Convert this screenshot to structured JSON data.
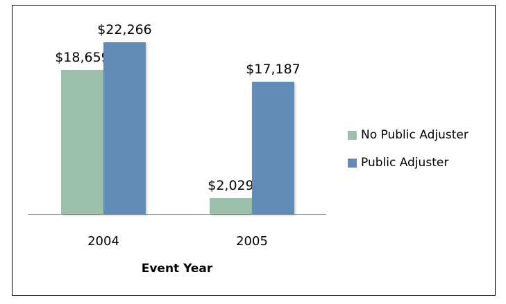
{
  "chart_data": {
    "type": "bar",
    "title": "",
    "xlabel": "Event Year",
    "ylabel": "",
    "categories": [
      "2004",
      "2005"
    ],
    "series": [
      {
        "name": "No Public Adjuster",
        "color": "#9bbfab",
        "values": [
          18659,
          2029
        ],
        "labels": [
          "$18,659",
          "$2,029"
        ]
      },
      {
        "name": "Public Adjuster",
        "color": "#618cb7",
        "values": [
          22266,
          17187
        ],
        "labels": [
          "$22,266",
          "$17,187"
        ]
      }
    ],
    "ylim": [
      0,
      22266
    ],
    "grid": false,
    "legend_position": "right"
  }
}
